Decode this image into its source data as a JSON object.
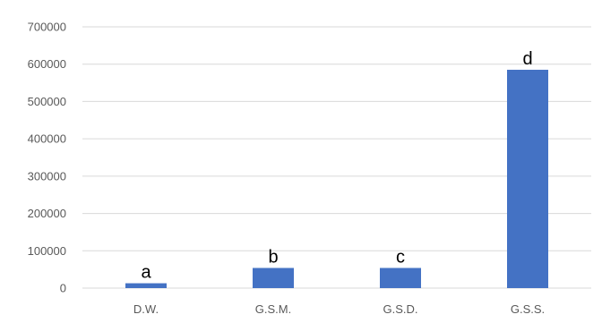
{
  "chart_data": {
    "type": "bar",
    "title": "",
    "xlabel": "",
    "ylabel": "",
    "categories": [
      "D.W.",
      "G.S.M.",
      "G.S.D.",
      "G.S.S."
    ],
    "values": [
      13000,
      54000,
      54000,
      585000
    ],
    "annotations": [
      "a",
      "b",
      "c",
      "d"
    ],
    "yticks": [
      "0",
      "100000",
      "200000",
      "300000",
      "400000",
      "500000",
      "600000",
      "700000"
    ],
    "ylim": [
      0,
      700000
    ],
    "grid": true,
    "legend": "none",
    "colors": {
      "bar": "#4472c4",
      "grid": "#d9d9d9",
      "tick_text": "#595959",
      "annotation_text": "#000000"
    }
  }
}
